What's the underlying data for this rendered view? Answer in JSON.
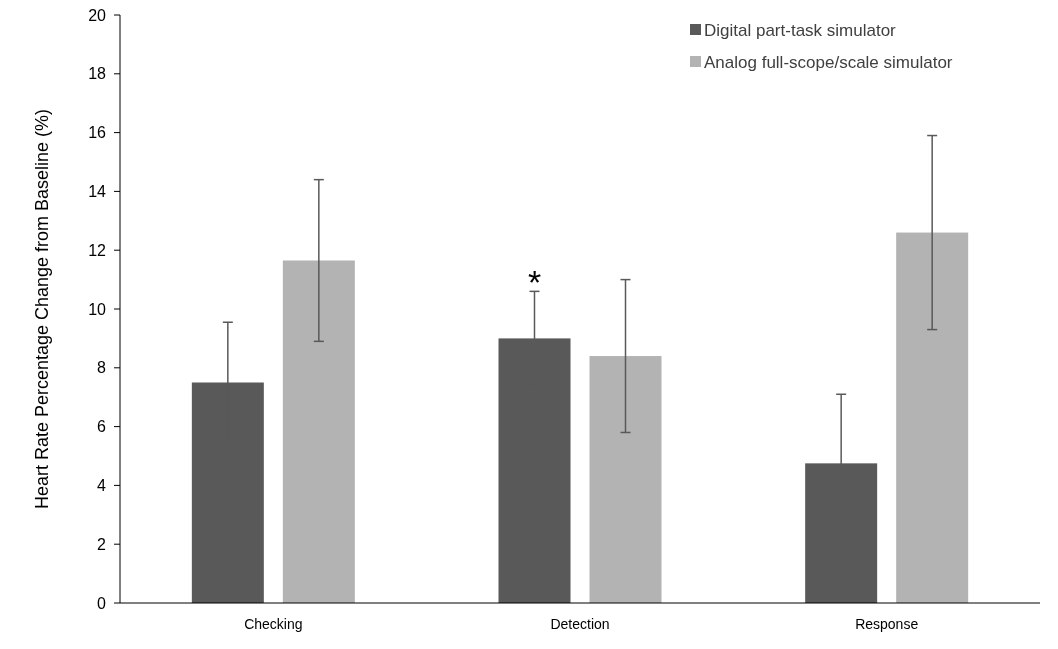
{
  "chart_data": {
    "type": "bar",
    "ylabel": "Heart Rate Percentage Change from Baseline (%)",
    "categories": [
      "Checking",
      "Detection",
      "Response"
    ],
    "series": [
      {
        "name": "Digital part-task simulator",
        "color": "#595959",
        "values": [
          7.5,
          9.0,
          4.75
        ],
        "errors": [
          2.05,
          1.6,
          2.35
        ]
      },
      {
        "name": "Analog full-scope/scale simulator",
        "color": "#b3b3b3",
        "values": [
          11.65,
          8.4,
          12.6
        ],
        "errors": [
          2.75,
          2.6,
          3.3
        ]
      }
    ],
    "ylim": [
      0,
      20
    ],
    "yticks": [
      0,
      2,
      4,
      6,
      8,
      10,
      12,
      14,
      16,
      18,
      20
    ],
    "grid": false,
    "legend": "top right",
    "annotations": [
      "*"
    ]
  }
}
